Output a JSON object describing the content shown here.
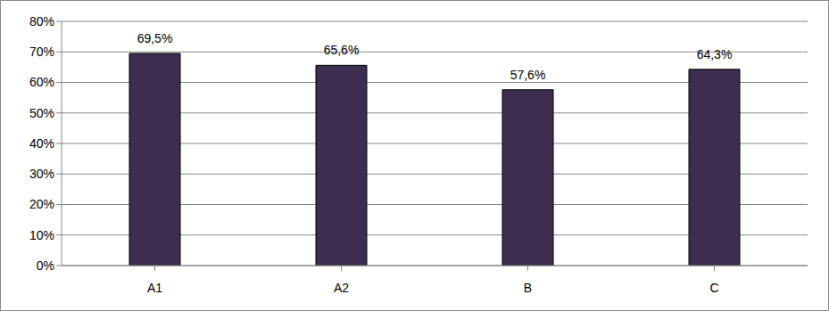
{
  "chart_data": {
    "type": "bar",
    "categories": [
      "A1",
      "A2",
      "B",
      "C"
    ],
    "values": [
      69.5,
      65.6,
      57.6,
      64.3
    ],
    "value_labels": [
      "69,5%",
      "65,6%",
      "57,6%",
      "64,3%"
    ],
    "color": "#3d2e50",
    "ylim": [
      0,
      80
    ],
    "yticks": [
      {
        "value": 0,
        "label": "0%"
      },
      {
        "value": 10,
        "label": "10%"
      },
      {
        "value": 20,
        "label": "20%"
      },
      {
        "value": 30,
        "label": "30%"
      },
      {
        "value": 40,
        "label": "40%"
      },
      {
        "value": 50,
        "label": "50%"
      },
      {
        "value": 60,
        "label": "60%"
      },
      {
        "value": 70,
        "label": "70%"
      },
      {
        "value": 80,
        "label": "80%"
      }
    ],
    "grid": true,
    "data_labels": true
  }
}
